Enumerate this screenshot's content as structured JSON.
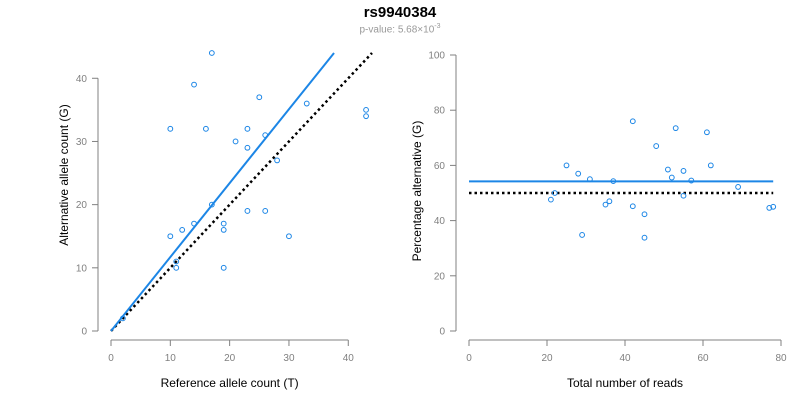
{
  "title": "rs9940384",
  "subtitle": {
    "prefix": "p-value: 5.68×10",
    "exponent": "-3"
  },
  "colors": {
    "points": "#1c86e6",
    "fit_line": "#1c86e6",
    "reference_line": "#000000",
    "axis": "#808080"
  },
  "chart_data": [
    {
      "type": "scatter",
      "xlabel": "Reference allele count (T)",
      "ylabel": "Alternative allele count (G)",
      "xlim": [
        0,
        44
      ],
      "ylim": [
        0,
        44
      ],
      "xticks": [
        0,
        10,
        20,
        30,
        40
      ],
      "yticks": [
        0,
        10,
        20,
        30,
        40
      ],
      "points": [
        [
          17,
          44
        ],
        [
          14,
          39
        ],
        [
          10,
          32
        ],
        [
          16,
          32
        ],
        [
          25,
          37
        ],
        [
          33,
          36
        ],
        [
          43,
          35
        ],
        [
          43,
          34
        ],
        [
          21,
          30
        ],
        [
          23,
          32
        ],
        [
          26,
          31
        ],
        [
          23,
          29
        ],
        [
          28,
          27
        ],
        [
          17,
          20
        ],
        [
          23,
          19
        ],
        [
          26,
          19
        ],
        [
          19,
          17
        ],
        [
          19,
          16
        ],
        [
          14,
          17
        ],
        [
          12,
          16
        ],
        [
          10,
          15
        ],
        [
          30,
          15
        ],
        [
          11,
          11
        ],
        [
          11,
          10
        ],
        [
          19,
          10
        ],
        [
          2,
          2
        ]
      ],
      "fit_line": {
        "x": [
          0,
          37.6
        ],
        "y": [
          0,
          44
        ]
      },
      "reference_line": {
        "x": [
          0,
          44
        ],
        "y": [
          0,
          44
        ]
      }
    },
    {
      "type": "scatter",
      "xlabel": "Total number of reads",
      "ylabel": "Percentage alternative (G)",
      "xlim": [
        0,
        80
      ],
      "ylim": [
        0,
        100
      ],
      "xticks": [
        0,
        20,
        40,
        60,
        80
      ],
      "yticks": [
        0,
        20,
        40,
        60,
        80,
        100
      ],
      "points": [
        [
          42,
          76
        ],
        [
          53,
          73.5
        ],
        [
          61,
          72
        ],
        [
          48,
          67
        ],
        [
          25,
          60
        ],
        [
          62,
          60
        ],
        [
          51,
          58.5
        ],
        [
          55,
          58
        ],
        [
          28,
          57
        ],
        [
          52,
          55.6
        ],
        [
          31,
          55
        ],
        [
          37,
          54.3
        ],
        [
          57,
          54.5
        ],
        [
          69,
          52.2
        ],
        [
          22,
          50
        ],
        [
          55,
          49
        ],
        [
          21,
          47.6
        ],
        [
          36,
          47
        ],
        [
          35,
          45.8
        ],
        [
          42,
          45.2
        ],
        [
          77,
          44.6
        ],
        [
          78,
          45
        ],
        [
          45,
          42.3
        ],
        [
          29,
          34.8
        ],
        [
          45,
          33.8
        ]
      ],
      "fit_line": {
        "x": [
          0,
          78
        ],
        "y": [
          54.2,
          54.2
        ]
      },
      "reference_line": {
        "x": [
          0,
          78
        ],
        "y": [
          50,
          50
        ]
      }
    }
  ]
}
